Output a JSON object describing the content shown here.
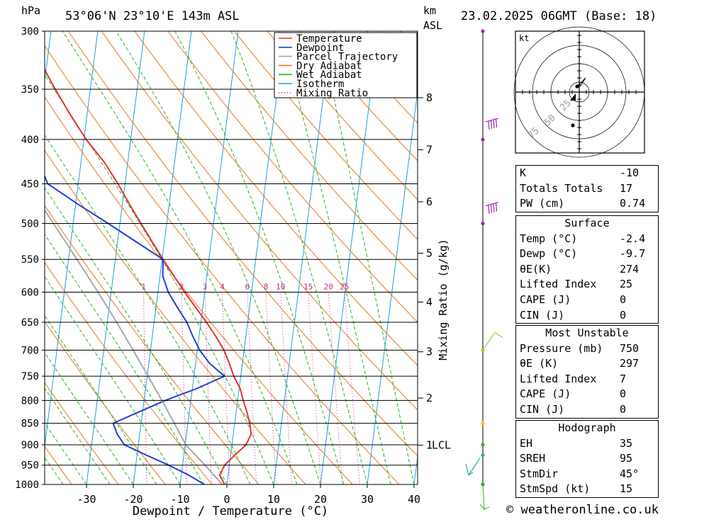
{
  "header": {
    "location": "53°06'N  23°10'E  143m  ASL",
    "datetime": "23.02.2025  06GMT  (Base: 18)",
    "hpa_label": "hPa",
    "km_label": "km",
    "asl_label": "ASL"
  },
  "chart_data": {
    "type": "line",
    "title": "53°06'N  23°10'E  143m  ASL",
    "xlabel": "Dewpoint / Temperature (°C)",
    "ylabel": "hPa",
    "y2label": "Mixing Ratio (g/kg)",
    "xlim": [
      -40,
      40
    ],
    "ylim": [
      1000,
      300
    ],
    "yscale": "log",
    "skew": true,
    "x_ticks": [
      -30,
      -20,
      -10,
      0,
      10,
      20,
      30,
      40
    ],
    "pressure_levels": [
      300,
      350,
      400,
      450,
      500,
      550,
      600,
      650,
      700,
      750,
      800,
      850,
      900,
      950,
      1000
    ],
    "km_ticks": [
      {
        "label": "8",
        "p": 358
      },
      {
        "label": "7",
        "p": 411
      },
      {
        "label": "6",
        "p": 472
      },
      {
        "label": "5",
        "p": 541
      },
      {
        "label": "4",
        "p": 616
      },
      {
        "label": "3",
        "p": 703
      },
      {
        "label": "2",
        "p": 795
      },
      {
        "label": "1",
        "p": 901
      }
    ],
    "lcl_label": "LCL",
    "lcl_pressure": 901,
    "mixing_ratio_labels": [
      "1",
      "2",
      "3",
      "4",
      "6",
      "8",
      "10",
      "15",
      "20",
      "25"
    ],
    "mixing_ratio_values": [
      1,
      2,
      3,
      4,
      6,
      8,
      10,
      15,
      20,
      25
    ],
    "legend": [
      {
        "name": "Temperature",
        "color": "#e8302e",
        "style": "solid"
      },
      {
        "name": "Dewpoint",
        "color": "#2040d8",
        "style": "solid"
      },
      {
        "name": "Parcel Trajectory",
        "color": "#a8a8a8",
        "style": "solid"
      },
      {
        "name": "Dry Adiabat",
        "color": "#e8781e",
        "style": "solid"
      },
      {
        "name": "Wet Adiabat",
        "color": "#22b822",
        "style": "solid"
      },
      {
        "name": "Isotherm",
        "color": "#1ea0e0",
        "style": "solid"
      },
      {
        "name": "Mixing Ratio",
        "color": "#d0208c",
        "style": "dotted"
      }
    ],
    "legend_position": "top-right",
    "series": [
      {
        "name": "Temperature",
        "color": "#e8302e",
        "points": [
          [
            1000,
            -0.5
          ],
          [
            975,
            -1.8
          ],
          [
            950,
            -1
          ],
          [
            925,
            0.9
          ],
          [
            900,
            3
          ],
          [
            875,
            3.8
          ],
          [
            850,
            3.2
          ],
          [
            825,
            2.3
          ],
          [
            800,
            1.2
          ],
          [
            775,
            0.2
          ],
          [
            750,
            -1.5
          ],
          [
            725,
            -2.8
          ],
          [
            700,
            -4.3
          ],
          [
            675,
            -6.4
          ],
          [
            650,
            -8.8
          ],
          [
            625,
            -11.5
          ],
          [
            600,
            -14.3
          ],
          [
            575,
            -17
          ],
          [
            550,
            -19.8
          ],
          [
            525,
            -22.6
          ],
          [
            500,
            -25.5
          ],
          [
            475,
            -28.5
          ],
          [
            450,
            -31.5
          ],
          [
            425,
            -35
          ],
          [
            400,
            -39.5
          ],
          [
            375,
            -43.5
          ],
          [
            350,
            -47.5
          ],
          [
            325,
            -51.5
          ],
          [
            300,
            -55.5
          ]
        ]
      },
      {
        "name": "Dewpoint",
        "color": "#2040d8",
        "points": [
          [
            1000,
            -4.8
          ],
          [
            975,
            -8.5
          ],
          [
            950,
            -13
          ],
          [
            925,
            -18
          ],
          [
            900,
            -23
          ],
          [
            875,
            -24.8
          ],
          [
            850,
            -26
          ],
          [
            825,
            -20.8
          ],
          [
            800,
            -15.5
          ],
          [
            775,
            -9
          ],
          [
            750,
            -3.5
          ],
          [
            725,
            -7
          ],
          [
            700,
            -9.5
          ],
          [
            675,
            -11.3
          ],
          [
            650,
            -13
          ],
          [
            625,
            -15.4
          ],
          [
            600,
            -17.8
          ],
          [
            575,
            -19.4
          ],
          [
            550,
            -19.8
          ],
          [
            525,
            -26
          ],
          [
            500,
            -32.5
          ],
          [
            475,
            -39.5
          ],
          [
            450,
            -46.5
          ],
          [
            425,
            -49
          ],
          [
            400,
            -53
          ],
          [
            375,
            -54
          ],
          [
            350,
            -55
          ],
          [
            325,
            -58.5
          ],
          [
            300,
            -62.5
          ]
        ]
      },
      {
        "name": "Parcel Trajectory",
        "color": "#a8a8a8",
        "points": [
          [
            1000,
            -1
          ],
          [
            950,
            -5.2
          ],
          [
            901,
            -9.8
          ],
          [
            850,
            -12.9
          ],
          [
            800,
            -16.2
          ],
          [
            750,
            -19.8
          ],
          [
            700,
            -23.7
          ],
          [
            650,
            -28
          ],
          [
            600,
            -32.8
          ],
          [
            550,
            -38.2
          ],
          [
            500,
            -44.2
          ],
          [
            450,
            -50.9
          ],
          [
            400,
            -58.5
          ],
          [
            350,
            -67
          ],
          [
            300,
            -76.5
          ]
        ]
      }
    ]
  },
  "hodograph": {
    "unit_label": "kt",
    "ring_labels": [
      "25",
      "50",
      "75"
    ]
  },
  "indices": {
    "rows": [
      {
        "label": "K",
        "value": "-10"
      },
      {
        "label": "Totals Totals",
        "value": "17"
      },
      {
        "label": "PW (cm)",
        "value": "0.74"
      }
    ]
  },
  "surface": {
    "title": "Surface",
    "rows": [
      {
        "label": "Temp (°C)",
        "value": "-2.4"
      },
      {
        "label": "Dewp (°C)",
        "value": "-9.7"
      },
      {
        "label": "θE(K)",
        "value": "274"
      },
      {
        "label": "Lifted Index",
        "value": "25"
      },
      {
        "label": "CAPE (J)",
        "value": "0"
      },
      {
        "label": "CIN (J)",
        "value": "0"
      }
    ]
  },
  "most_unstable": {
    "title": "Most Unstable",
    "rows": [
      {
        "label": "Pressure (mb)",
        "value": "750"
      },
      {
        "label": "θE (K)",
        "value": "297"
      },
      {
        "label": "Lifted Index",
        "value": "7"
      },
      {
        "label": "CAPE (J)",
        "value": "0"
      },
      {
        "label": "CIN (J)",
        "value": "0"
      }
    ]
  },
  "hodograph_table": {
    "title": "Hodograph",
    "rows": [
      {
        "label": "EH",
        "value": "35"
      },
      {
        "label": "SREH",
        "value": "95"
      },
      {
        "label": "StmDir",
        "value": "45°"
      },
      {
        "label": "StmSpd (kt)",
        "value": "15"
      }
    ]
  },
  "footer": {
    "credit": "© weatheronline.co.uk"
  }
}
